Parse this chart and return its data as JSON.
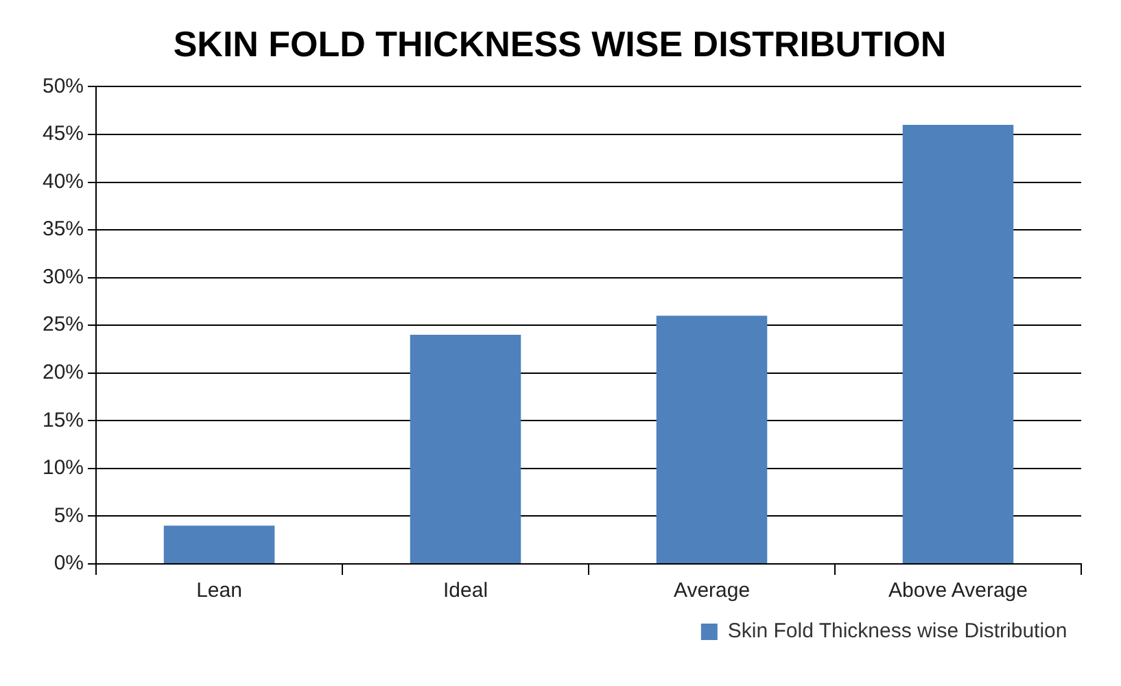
{
  "chart_data": {
    "type": "bar",
    "title": "SKIN FOLD THICKNESS WISE DISTRIBUTION",
    "categories": [
      "Lean",
      "Ideal",
      "Average",
      "Above Average"
    ],
    "series": [
      {
        "name": "Skin Fold Thickness wise Distribution",
        "color": "#4f81bd",
        "values": [
          4,
          24,
          26,
          46
        ]
      }
    ],
    "ylim": [
      0,
      50
    ],
    "yticks": [
      {
        "value": 0,
        "label": "0%"
      },
      {
        "value": 5,
        "label": "5%"
      },
      {
        "value": 10,
        "label": "10%"
      },
      {
        "value": 15,
        "label": "15%"
      },
      {
        "value": 20,
        "label": "20%"
      },
      {
        "value": 25,
        "label": "25%"
      },
      {
        "value": 30,
        "label": "30%"
      },
      {
        "value": 35,
        "label": "35%"
      },
      {
        "value": 40,
        "label": "40%"
      },
      {
        "value": 45,
        "label": "45%"
      },
      {
        "value": 50,
        "label": "50%"
      }
    ],
    "grid": "y",
    "legend": "bottom right"
  }
}
